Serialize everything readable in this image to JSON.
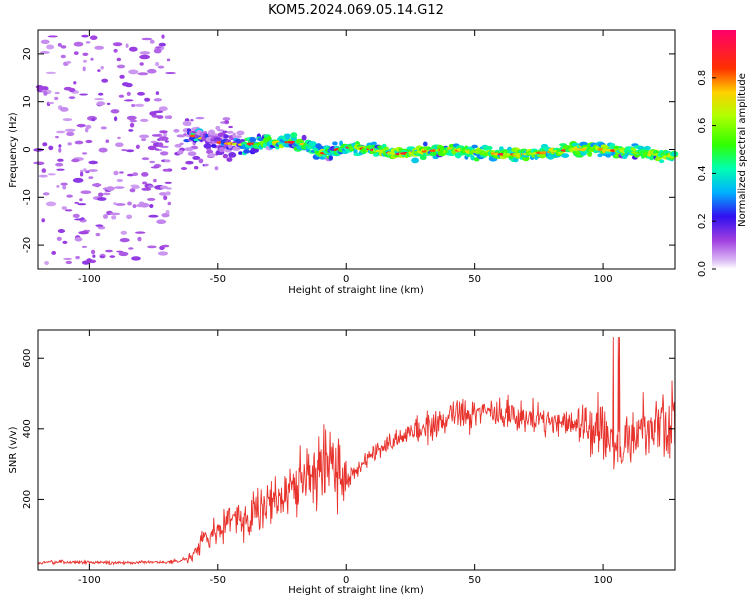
{
  "title": "KOM5.2024.069.05.14.G12",
  "chart_data": [
    {
      "type": "heatmap",
      "xlabel": "Height of straight line (km)",
      "ylabel": "Frequency (Hz)",
      "xlim": [
        -120,
        128
      ],
      "ylim": [
        -25,
        25
      ],
      "x_ticks": [
        -100,
        -50,
        0,
        50,
        100
      ],
      "y_ticks": [
        -20,
        -10,
        0,
        10,
        20
      ],
      "colorbar": {
        "label": "Normalized spectral amplitude",
        "range": [
          0,
          1
        ],
        "ticks": [
          0.0,
          0.2,
          0.4,
          0.6,
          0.8
        ]
      },
      "centerline": {
        "x": [
          -60,
          -50,
          -40,
          -30,
          -20,
          -15,
          -10,
          0,
          10,
          20,
          30,
          40,
          50,
          60,
          70,
          80,
          90,
          100,
          110,
          120,
          128
        ],
        "frequency": [
          3,
          1.5,
          1,
          1.5,
          1.5,
          1,
          -1,
          0.5,
          0,
          -1,
          -0.5,
          0,
          -0.5,
          -1,
          -1,
          -0.5,
          0,
          0,
          -0.5,
          -1,
          -1.5
        ]
      }
    },
    {
      "type": "line",
      "xlabel": "Height of straight line (km)",
      "ylabel": "SNR (v/v)",
      "xlim": [
        -120,
        128
      ],
      "ylim": [
        0,
        680
      ],
      "x_ticks": [
        -100,
        -50,
        0,
        50,
        100
      ],
      "y_ticks": [
        200,
        400,
        600
      ],
      "color": "#e8332d",
      "series": [
        {
          "x": [
            -120,
            -110,
            -100,
            -90,
            -80,
            -70,
            -65,
            -60,
            -55,
            -50,
            -45,
            -40,
            -35,
            -30,
            -25,
            -20,
            -15,
            -10,
            -5,
            0,
            5,
            10,
            15,
            20,
            25,
            30,
            35,
            40,
            45,
            50,
            55,
            60,
            65,
            70,
            75,
            80,
            85,
            90,
            95,
            100,
            105,
            110,
            115,
            120,
            128
          ],
          "values": [
            20,
            22,
            22,
            20,
            22,
            22,
            25,
            40,
            90,
            120,
            140,
            150,
            170,
            190,
            200,
            240,
            270,
            300,
            330,
            250,
            290,
            320,
            350,
            370,
            390,
            400,
            420,
            430,
            440,
            440,
            450,
            440,
            440,
            430,
            430,
            420,
            420,
            410,
            420,
            400,
            330,
            360,
            390,
            410,
            420
          ]
        }
      ]
    }
  ]
}
